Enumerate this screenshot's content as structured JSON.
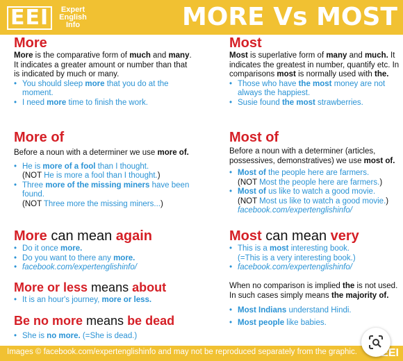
{
  "header": {
    "logo_letters": "EEI",
    "logo_line1": "Expert",
    "logo_line2": "English",
    "logo_line3": "Info",
    "title": "MORE Vs MOST"
  },
  "left": {
    "more": {
      "heading": "More",
      "def_parts": [
        "More",
        " is the comparative form of ",
        "much",
        " and ",
        "many",
        ". It indicates a greater amount or number than that is indicated by much or many."
      ],
      "ex1_a": "You should sleep ",
      "ex1_b": "more",
      "ex1_c": " that you do at the moment.",
      "ex2_a": "I need ",
      "ex2_b": "more",
      "ex2_c": " time to finish the work."
    },
    "more_of": {
      "heading": "More of",
      "def_a": "Before a noun with a determiner we use ",
      "def_b": "more of.",
      "ex1_a": "He is ",
      "ex1_b": "more of a fool",
      "ex1_c": " than I thought.",
      "not1_a": "(NOT ",
      "not1_b": "He is more a fool than I thought.",
      "not1_c": ")",
      "ex2_a": "Three ",
      "ex2_b": "more of the missing miners",
      "ex2_c": " have been found.",
      "not2_a": "(NOT ",
      "not2_b": "Three more the missing miners...",
      "not2_c": ")"
    },
    "more_again": {
      "h_a": "More",
      "h_b": " can mean ",
      "h_c": "again",
      "ex1_a": "Do it once ",
      "ex1_b": "more.",
      "ex2_a": "Do you want to there any ",
      "ex2_b": "more.",
      "fb": "facebook.com/expertenglishinfo/"
    },
    "more_or_less": {
      "h_a": "More or less",
      "h_b": " means ",
      "h_c": "about",
      "ex1_a": "It is an hour's journey, ",
      "ex1_b": "more or less."
    },
    "be_no_more": {
      "h_a": "Be no more",
      "h_b": " means ",
      "h_c": "be dead",
      "ex1_a": "She is ",
      "ex1_b": "no more.",
      "ex1_c": " (=She is dead.)"
    }
  },
  "right": {
    "most": {
      "heading": "Most",
      "def_parts": [
        "Most",
        " is superlative form of ",
        "many",
        " and ",
        "much.",
        " It indicates the greatest in number, quantify etc. In comparisons ",
        "most",
        " is normally used with ",
        "the."
      ],
      "ex1_a": "Those who have ",
      "ex1_b": "the most",
      "ex1_c": " money are not always the happiest.",
      "ex2_a": "Susie found ",
      "ex2_b": "the most",
      "ex2_c": " strawberries."
    },
    "most_of": {
      "heading": "Most of",
      "def_a": "Before a noun with a determiner (articles, possessives, demonstratives) we use ",
      "def_b": "most of.",
      "ex1_a": "Most of",
      "ex1_b": " the people here are farmers.",
      "not1_a": "(NOT ",
      "not1_b": "Most the people here are farmers.",
      "not1_c": ")",
      "ex2_a": "Most of",
      "ex2_b": " us like to watch a good movie.",
      "not2_a": "(NOT ",
      "not2_b": "Most us like to watch a good movie.",
      "not2_c": ")",
      "fb": "facebook.com/expertenglishinfo/"
    },
    "most_very": {
      "h_a": "Most",
      "h_b": " can mean ",
      "h_c": "very",
      "ex1_a": "This is a ",
      "ex1_b": "most",
      "ex1_c": " interesting book.",
      "ex1_d": "(=This is a very interesting book.)",
      "fb": "facebook.com/expertenglishinfo/"
    },
    "no_comparison": {
      "def_a": "When no comparison is implied ",
      "def_b": "the",
      "def_c": " is not used. In such cases simply means ",
      "def_d": "the majority of.",
      "ex1_a": "Most Indians",
      "ex1_b": " understand Hindi.",
      "ex2_a": "Most people",
      "ex2_b": " like babies."
    }
  },
  "footer": {
    "text": "Images © facebook.com/expertenglishinfo and may not be reproduced separately from the graphic.",
    "eei": "EEI"
  },
  "lens_icon": "google-lens-icon"
}
